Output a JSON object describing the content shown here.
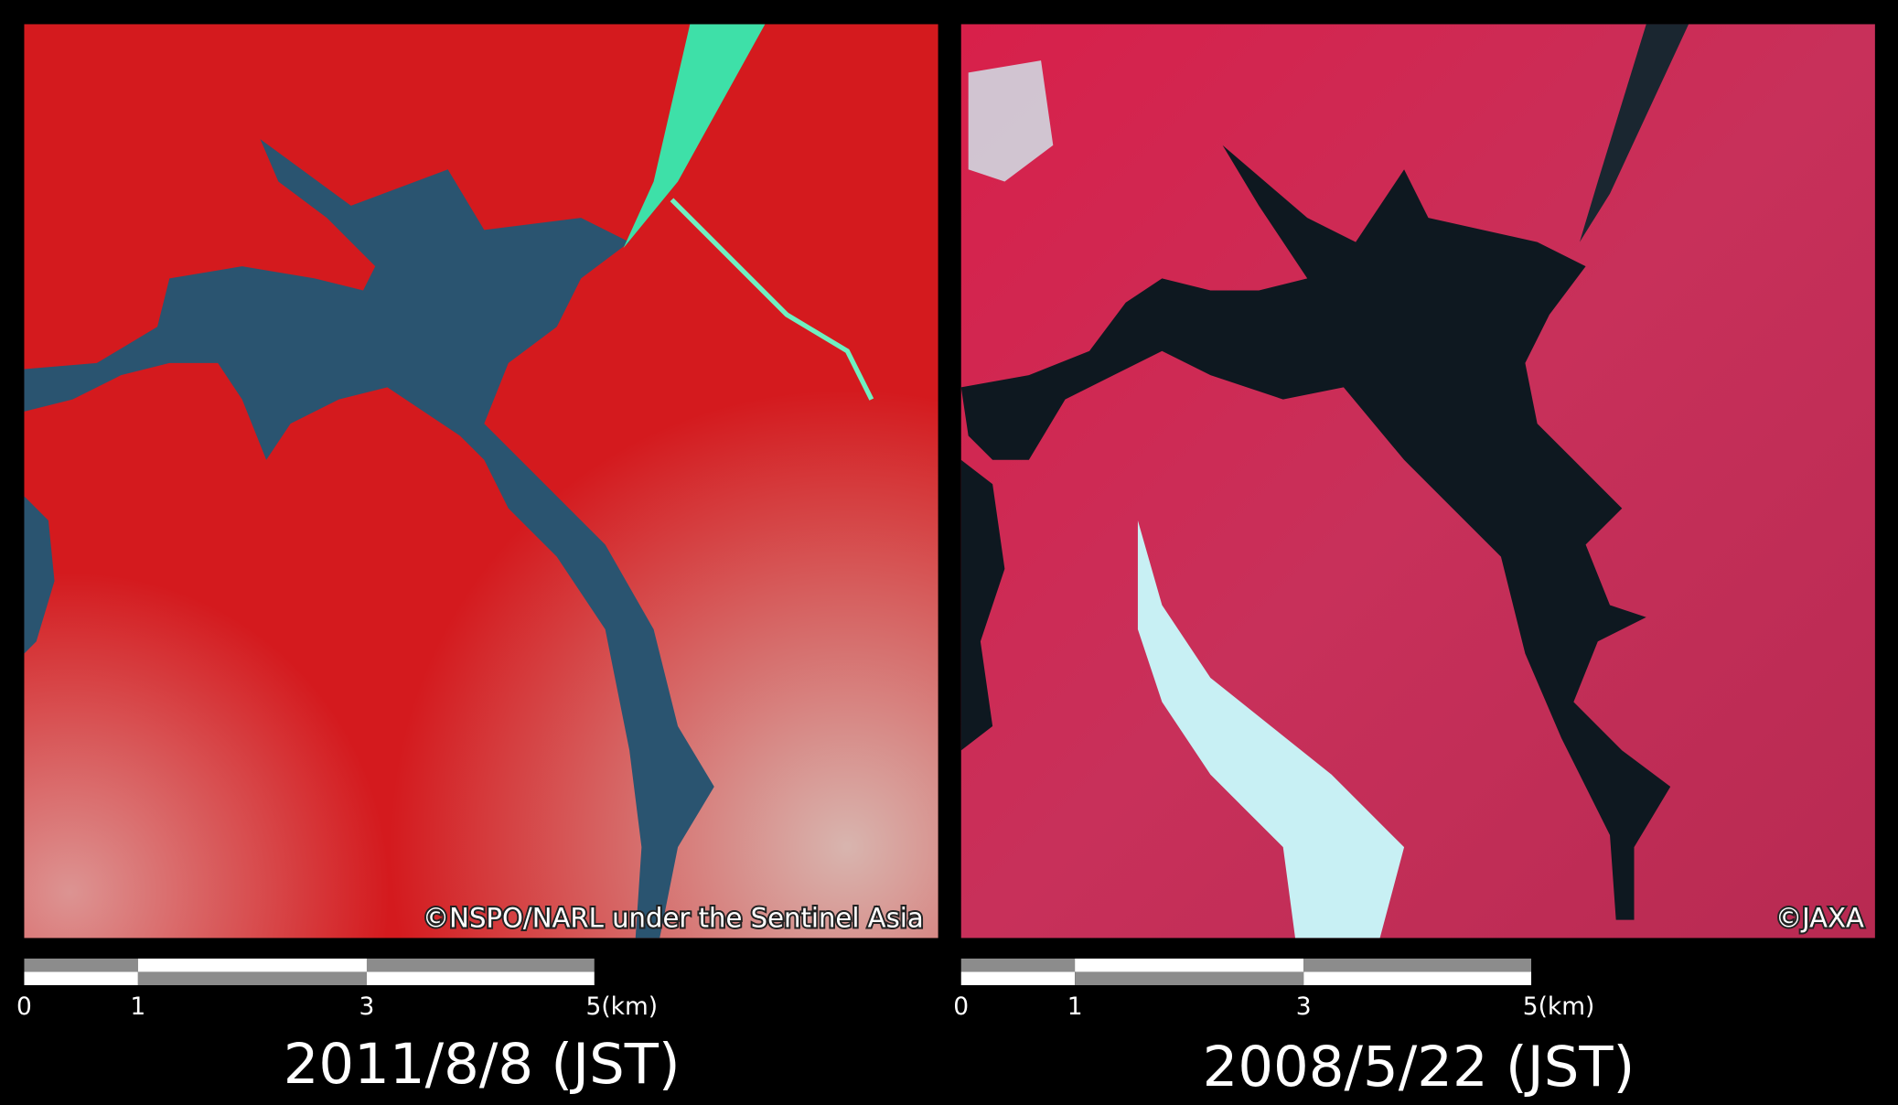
{
  "panels": [
    {
      "credit": "©NSPO/NARL under the Sentinel Asia",
      "scale_labels": [
        "0",
        "1",
        "3",
        "5(km)"
      ],
      "date": "2011/8/8 (JST)"
    },
    {
      "credit": "©JAXA",
      "scale_labels": [
        "0",
        "1",
        "3",
        "5(km)"
      ],
      "date": "2008/5/22 (JST)"
    }
  ]
}
